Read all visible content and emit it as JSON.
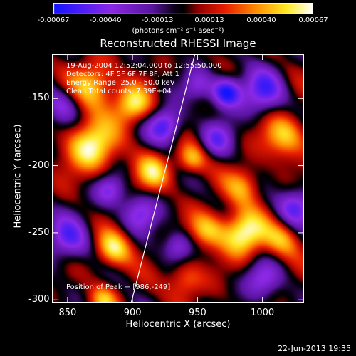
{
  "colorbar": {
    "ticks": [
      "-0.00067",
      "-0.00040",
      "-0.00013",
      "0.00013",
      "0.00040",
      "0.00067"
    ],
    "unit_label": "(photons cm⁻² s⁻¹ asec⁻²)"
  },
  "title": "Reconstructed RHESSI Image",
  "info_lines": [
    "19-Aug-2004 12:52:04.000 to 12:55:50.000",
    "Detectors: 4F 5F 6F 7F 8F, Att 1",
    "Energy Range: 25.0 - 50.0 keV",
    "Clean    Total counts: 7.39E+04"
  ],
  "peak_label": "Position of Peak = [986,-249]",
  "footer_date": "22-Jun-2013 19:35",
  "chart_data": {
    "type": "heatmap",
    "title": "Reconstructed RHESSI Image",
    "xlabel": "Heliocentric X (arcsec)",
    "ylabel": "Heliocentric Y (arcsec)",
    "xlim": [
      838,
      1032
    ],
    "ylim": [
      -302,
      -117
    ],
    "x_ticks": [
      850,
      900,
      950,
      1000
    ],
    "y_ticks": [
      -150,
      -200,
      -250,
      -300
    ],
    "x_tick_labels": [
      "850",
      "900",
      "950",
      "1000"
    ],
    "y_tick_labels": [
      "-150",
      "-200",
      "-250",
      "-300"
    ],
    "peak": [
      986,
      -249
    ],
    "limb_line": [
      [
        899,
        -302
      ],
      [
        948,
        -117
      ]
    ],
    "color_range": [
      -0.00067,
      0.00067
    ],
    "blobs": [
      {
        "x": 870,
        "y": -140,
        "s": 12,
        "a": 0.8
      },
      {
        "x": 868,
        "y": -185,
        "s": 14,
        "a": 0.95
      },
      {
        "x": 885,
        "y": -262,
        "s": 10,
        "a": 0.85
      },
      {
        "x": 900,
        "y": -155,
        "s": 10,
        "a": 0.85
      },
      {
        "x": 915,
        "y": -205,
        "s": 10,
        "a": 0.7
      },
      {
        "x": 945,
        "y": -195,
        "s": 8,
        "a": 0.7
      },
      {
        "x": 957,
        "y": -248,
        "s": 10,
        "a": 0.65
      },
      {
        "x": 985,
        "y": -250,
        "s": 12,
        "a": 1.0
      },
      {
        "x": 985,
        "y": -215,
        "s": 10,
        "a": 0.6
      },
      {
        "x": 1017,
        "y": -178,
        "s": 12,
        "a": 0.75
      },
      {
        "x": 1015,
        "y": -255,
        "s": 10,
        "a": 0.6
      },
      {
        "x": 940,
        "y": -285,
        "s": 10,
        "a": 0.55
      },
      {
        "x": 877,
        "y": -300,
        "s": 8,
        "a": 0.6
      },
      {
        "x": 925,
        "y": -170,
        "s": 9,
        "a": -0.85
      },
      {
        "x": 972,
        "y": -145,
        "s": 8,
        "a": -1.0
      },
      {
        "x": 1000,
        "y": -145,
        "s": 12,
        "a": -0.7
      },
      {
        "x": 850,
        "y": -255,
        "s": 12,
        "a": -0.65
      },
      {
        "x": 905,
        "y": -235,
        "s": 10,
        "a": -0.6
      },
      {
        "x": 882,
        "y": -218,
        "s": 8,
        "a": -0.6
      },
      {
        "x": 965,
        "y": -180,
        "s": 9,
        "a": -0.55
      },
      {
        "x": 1025,
        "y": -230,
        "s": 10,
        "a": -0.7
      },
      {
        "x": 935,
        "y": -260,
        "s": 8,
        "a": -0.6
      },
      {
        "x": 1000,
        "y": -285,
        "s": 10,
        "a": -0.55
      },
      {
        "x": 845,
        "y": -155,
        "s": 10,
        "a": -0.5
      },
      {
        "x": 950,
        "y": -140,
        "s": 8,
        "a": -0.45
      }
    ]
  }
}
